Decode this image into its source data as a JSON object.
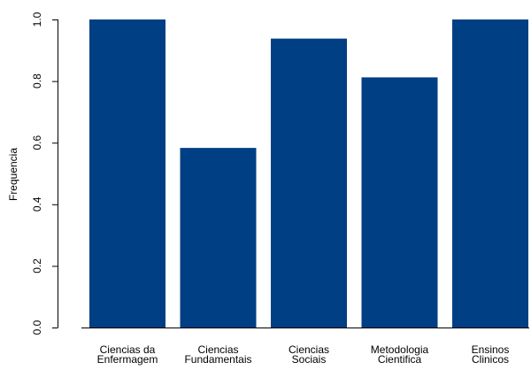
{
  "chart_data": {
    "type": "bar",
    "categories": [
      [
        "Ciencias da",
        "Enfermagem"
      ],
      [
        "Ciencias",
        "Fundamentais"
      ],
      [
        "Ciencias",
        "Sociais"
      ],
      [
        "Metodologia",
        "Cientifica"
      ],
      [
        "Ensinos",
        "Clinicos"
      ]
    ],
    "values": [
      1.0,
      0.583,
      0.938,
      0.812,
      1.0
    ],
    "title": "",
    "xlabel": "",
    "ylabel": "Frequencia",
    "ylim": [
      0,
      1
    ],
    "yticks": [
      "0.0",
      "0.2",
      "0.4",
      "0.6",
      "0.8",
      "1.0"
    ],
    "grid": false,
    "bar_color": "#003f84"
  }
}
